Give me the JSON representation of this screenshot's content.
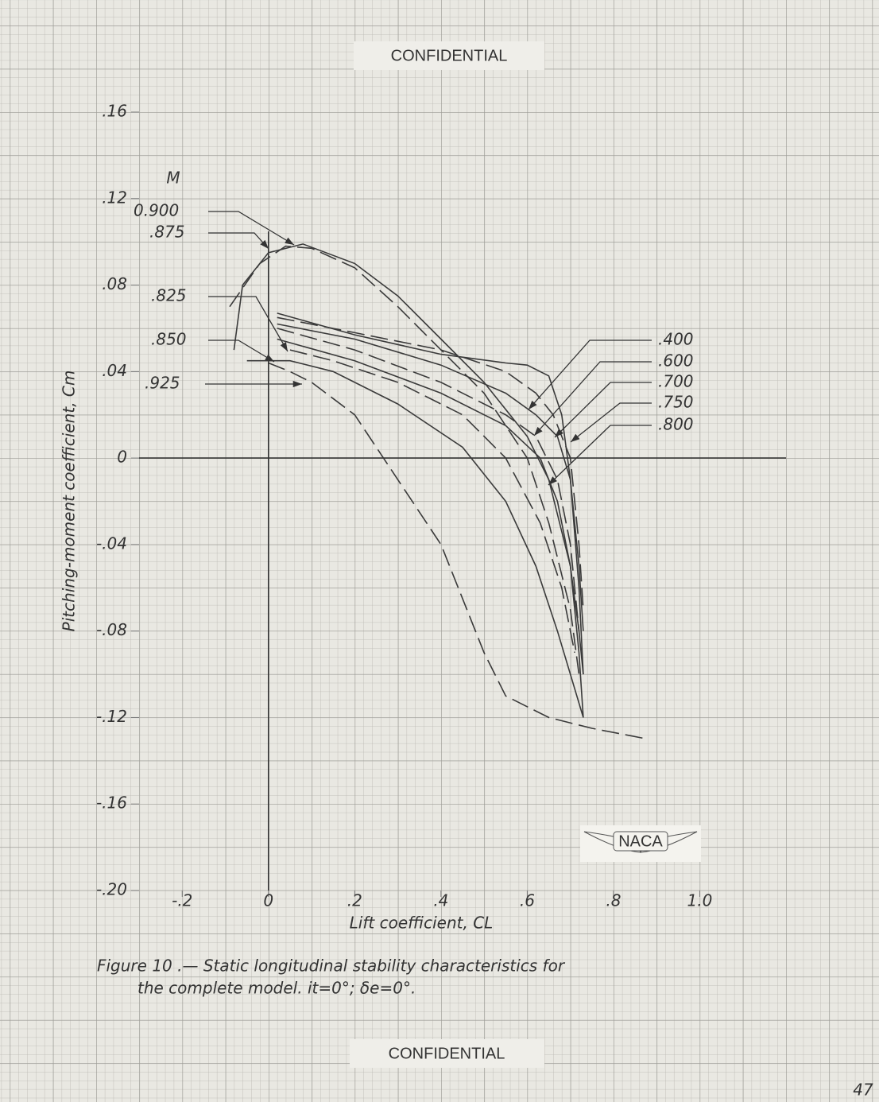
{
  "header": {
    "top": "CONFIDENTIAL",
    "bottom": "CONFIDENTIAL",
    "page": "47"
  },
  "chart_data": {
    "type": "line",
    "x_label": "Lift coefficient, CL",
    "y_label": "Pitching-moment coefficient, Cm",
    "legend_title": "M",
    "caption": [
      "Figure 10 .— Static longitudinal stability characteristics for",
      "the complete model. it=0°; δe=0°."
    ],
    "logo": "NACA",
    "xlim": [
      -0.3,
      1.2
    ],
    "ylim": [
      -0.2,
      0.16
    ],
    "xticks": [
      {
        "value": -0.2,
        "label": "-.2"
      },
      0,
      {
        "value": 0.2,
        "label": ".2"
      },
      {
        "value": 0.4,
        "label": ".4"
      },
      {
        "value": 0.6,
        "label": ".6"
      },
      {
        "value": 0.8,
        "label": ".8"
      },
      {
        "value": 1,
        "label": "1.0"
      }
    ],
    "yticks": [
      {
        "value": 0.16,
        "label": ".16"
      },
      {
        "value": 0.12,
        "label": ".12"
      },
      {
        "value": 0.08,
        "label": ".08"
      },
      {
        "value": 0.04,
        "label": ".04"
      },
      0,
      {
        "value": -0.04,
        "label": "-.04"
      },
      {
        "value": -0.08,
        "label": "-.08"
      },
      {
        "value": -0.12,
        "label": "-.12"
      },
      {
        "value": -0.16,
        "label": "-.16"
      },
      {
        "value": -0.2,
        "label": "-.20"
      }
    ],
    "grid": true,
    "color": "#3a3a3a",
    "series": [
      {
        "name": ".400",
        "dash": false,
        "x": [
          0.02,
          0.2,
          0.4,
          0.55,
          0.6,
          0.65,
          0.68,
          0.7,
          0.72,
          0.73
        ],
        "values": [
          0.067,
          0.057,
          0.048,
          0.044,
          0.043,
          0.038,
          0.02,
          -0.01,
          -0.05,
          -0.08
        ]
      },
      {
        "name": ".600",
        "dash": true,
        "x": [
          0.02,
          0.2,
          0.4,
          0.55,
          0.62,
          0.66,
          0.7,
          0.72,
          0.73
        ],
        "values": [
          0.065,
          0.058,
          0.05,
          0.04,
          0.03,
          0.02,
          0.0,
          -0.04,
          -0.07
        ]
      },
      {
        "name": ".700",
        "dash": false,
        "x": [
          0.02,
          0.2,
          0.4,
          0.55,
          0.62,
          0.67,
          0.7,
          0.72,
          0.73
        ],
        "values": [
          0.062,
          0.055,
          0.043,
          0.03,
          0.02,
          0.01,
          -0.01,
          -0.06,
          -0.1
        ]
      },
      {
        "name": ".750",
        "dash": true,
        "x": [
          0.02,
          0.2,
          0.4,
          0.55,
          0.62,
          0.67,
          0.7,
          0.72
        ],
        "values": [
          0.06,
          0.05,
          0.035,
          0.02,
          0.01,
          -0.01,
          -0.04,
          -0.08
        ]
      },
      {
        "name": ".800",
        "dash": false,
        "x": [
          0.02,
          0.2,
          0.4,
          0.55,
          0.63,
          0.67,
          0.7,
          0.72,
          0.73
        ],
        "values": [
          0.055,
          0.045,
          0.03,
          0.015,
          0.0,
          -0.02,
          -0.05,
          -0.08,
          -0.1
        ]
      },
      {
        "name": ".825",
        "dash": true,
        "x": [
          0.05,
          0.15,
          0.3,
          0.45,
          0.55,
          0.63,
          0.68,
          0.71
        ],
        "values": [
          0.05,
          0.045,
          0.035,
          0.02,
          0.0,
          -0.03,
          -0.06,
          -0.09
        ]
      },
      {
        "name": ".850",
        "dash": false,
        "x": [
          -0.05,
          0.05,
          0.15,
          0.3,
          0.45,
          0.55,
          0.62,
          0.67,
          0.7,
          0.73
        ],
        "values": [
          0.045,
          0.045,
          0.04,
          0.025,
          0.005,
          -0.02,
          -0.05,
          -0.08,
          -0.1,
          -0.12
        ]
      },
      {
        "name": "0.900",
        "dash": false,
        "x": [
          -0.08,
          -0.06,
          0,
          0.08,
          0.2,
          0.3,
          0.4,
          0.5,
          0.6,
          0.65,
          0.7,
          0.72,
          0.73
        ],
        "values": [
          0.05,
          0.08,
          0.095,
          0.099,
          0.09,
          0.075,
          0.055,
          0.035,
          0.01,
          -0.01,
          -0.05,
          -0.09,
          -0.12
        ]
      },
      {
        "name": ".875",
        "dash": true,
        "x": [
          -0.09,
          -0.02,
          0.04,
          0.1,
          0.2,
          0.3,
          0.4,
          0.5,
          0.6,
          0.65,
          0.7,
          0.72
        ],
        "values": [
          0.07,
          0.09,
          0.098,
          0.097,
          0.088,
          0.07,
          0.05,
          0.03,
          0.0,
          -0.03,
          -0.07,
          -0.1
        ]
      },
      {
        "name": ".925",
        "dash": true,
        "x": [
          0,
          0.05,
          0.1,
          0.2,
          0.3,
          0.4,
          0.5,
          0.55,
          0.65,
          0.75,
          0.88
        ],
        "values": [
          0.044,
          0.04,
          0.035,
          0.02,
          -0.01,
          -0.04,
          -0.09,
          -0.11,
          -0.12,
          -0.125,
          -0.13
        ]
      }
    ]
  }
}
